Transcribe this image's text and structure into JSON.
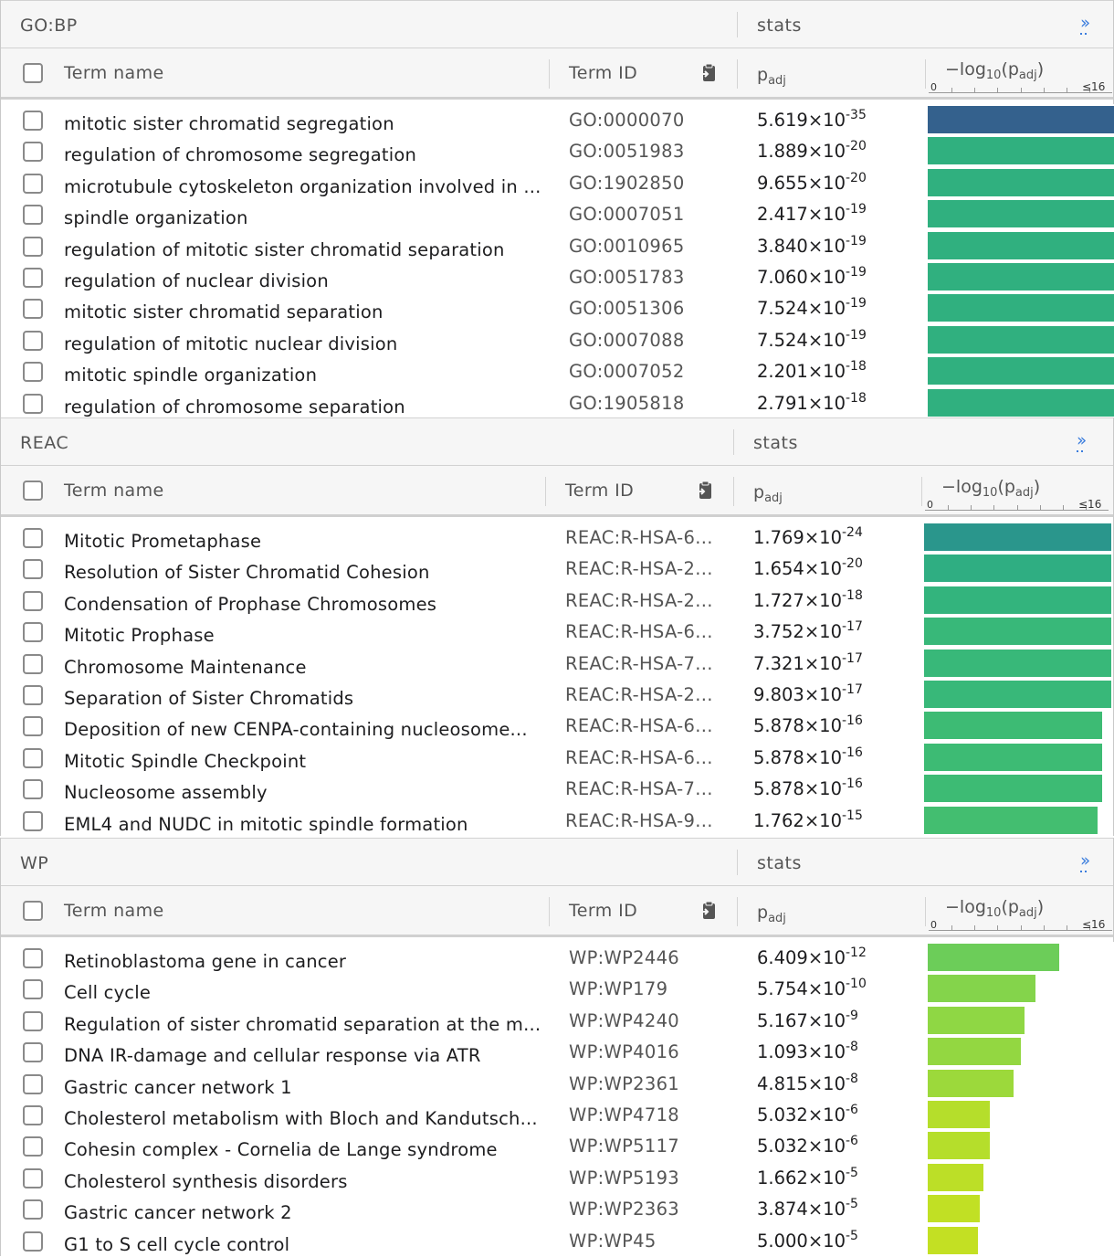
{
  "columns": {
    "term_name": "Term name",
    "term_id": "Term ID",
    "padj": "p",
    "padj_sub": "adj",
    "log_prefix": "−log",
    "log_sub": "10",
    "log_mid": "(p",
    "log_sub2": "adj",
    "log_suffix": ")",
    "stats": "stats",
    "axis_zero": "0",
    "axis_max": "≤16",
    "expand_glyph": "››"
  },
  "sections": [
    {
      "title": "GO:BP",
      "rows": [
        {
          "name": "mitotic sister chromatid segregation",
          "id": "GO:0000070",
          "mant": "5.619×10",
          "exp": "-35",
          "score": 16,
          "color": "#34618d"
        },
        {
          "name": "regulation of chromosome segregation",
          "id": "GO:0051983",
          "mant": "1.889×10",
          "exp": "-20",
          "score": 16,
          "color": "#30b07f"
        },
        {
          "name": "microtubule cytoskeleton organization involved in ...",
          "id": "GO:1902850",
          "mant": "9.655×10",
          "exp": "-20",
          "score": 16,
          "color": "#30b07f"
        },
        {
          "name": "spindle organization",
          "id": "GO:0007051",
          "mant": "2.417×10",
          "exp": "-19",
          "score": 16,
          "color": "#30b07f"
        },
        {
          "name": "regulation of mitotic sister chromatid separation",
          "id": "GO:0010965",
          "mant": "3.840×10",
          "exp": "-19",
          "score": 16,
          "color": "#30b07f"
        },
        {
          "name": "regulation of nuclear division",
          "id": "GO:0051783",
          "mant": "7.060×10",
          "exp": "-19",
          "score": 16,
          "color": "#30b07f"
        },
        {
          "name": "mitotic sister chromatid separation",
          "id": "GO:0051306",
          "mant": "7.524×10",
          "exp": "-19",
          "score": 16,
          "color": "#30b07f"
        },
        {
          "name": "regulation of mitotic nuclear division",
          "id": "GO:0007088",
          "mant": "7.524×10",
          "exp": "-19",
          "score": 16,
          "color": "#30b07f"
        },
        {
          "name": "mitotic spindle organization",
          "id": "GO:0007052",
          "mant": "2.201×10",
          "exp": "-18",
          "score": 16,
          "color": "#30b07f"
        },
        {
          "name": "regulation of chromosome separation",
          "id": "GO:1905818",
          "mant": "2.791×10",
          "exp": "-18",
          "score": 16,
          "color": "#30b07f"
        }
      ]
    },
    {
      "title": "REAC",
      "rows": [
        {
          "name": "Mitotic Prometaphase",
          "id": "REAC:R-HSA-6...",
          "mant": "1.769×10",
          "exp": "-24",
          "score": 16,
          "color": "#2a968c"
        },
        {
          "name": "Resolution of Sister Chromatid Cohesion",
          "id": "REAC:R-HSA-2...",
          "mant": "1.654×10",
          "exp": "-20",
          "score": 16,
          "color": "#2fae82"
        },
        {
          "name": "Condensation of Prophase Chromosomes",
          "id": "REAC:R-HSA-2...",
          "mant": "1.727×10",
          "exp": "-18",
          "score": 16,
          "color": "#33b47d"
        },
        {
          "name": "Mitotic Prophase",
          "id": "REAC:R-HSA-6...",
          "mant": "3.752×10",
          "exp": "-17",
          "score": 16,
          "color": "#38b879"
        },
        {
          "name": "Chromosome Maintenance",
          "id": "REAC:R-HSA-7...",
          "mant": "7.321×10",
          "exp": "-17",
          "score": 16,
          "color": "#38b879"
        },
        {
          "name": "Separation of Sister Chromatids",
          "id": "REAC:R-HSA-2...",
          "mant": "9.803×10",
          "exp": "-17",
          "score": 16,
          "color": "#38b879"
        },
        {
          "name": "Deposition of new CENPA-containing nucleosome...",
          "id": "REAC:R-HSA-6...",
          "mant": "5.878×10",
          "exp": "-16",
          "score": 15.2,
          "color": "#3dbb74"
        },
        {
          "name": "Mitotic Spindle Checkpoint",
          "id": "REAC:R-HSA-6...",
          "mant": "5.878×10",
          "exp": "-16",
          "score": 15.2,
          "color": "#3dbb74"
        },
        {
          "name": "Nucleosome assembly",
          "id": "REAC:R-HSA-7...",
          "mant": "5.878×10",
          "exp": "-16",
          "score": 15.2,
          "color": "#3dbb74"
        },
        {
          "name": "EML4 and NUDC in mitotic spindle formation",
          "id": "REAC:R-HSA-9...",
          "mant": "1.762×10",
          "exp": "-15",
          "score": 14.8,
          "color": "#43be70"
        }
      ]
    },
    {
      "title": "WP",
      "rows": [
        {
          "name": "Retinoblastoma gene in cancer",
          "id": "WP:WP2446",
          "mant": "6.409×10",
          "exp": "-12",
          "score": 11.2,
          "color": "#6ccd59"
        },
        {
          "name": "Cell cycle",
          "id": "WP:WP179",
          "mant": "5.754×10",
          "exp": "-10",
          "score": 9.2,
          "color": "#84d44b"
        },
        {
          "name": "Regulation of sister chromatid separation at the m...",
          "id": "WP:WP4240",
          "mant": "5.167×10",
          "exp": "-9",
          "score": 8.3,
          "color": "#8fd744"
        },
        {
          "name": "DNA IR-damage and cellular response via ATR",
          "id": "WP:WP4016",
          "mant": "1.093×10",
          "exp": "-8",
          "score": 7.96,
          "color": "#93d741"
        },
        {
          "name": "Gastric cancer network 1",
          "id": "WP:WP2361",
          "mant": "4.815×10",
          "exp": "-8",
          "score": 7.3,
          "color": "#9cd93b"
        },
        {
          "name": "Cholesterol metabolism with Bloch and Kandutsch...",
          "id": "WP:WP4718",
          "mant": "5.032×10",
          "exp": "-6",
          "score": 5.3,
          "color": "#b5de2b"
        },
        {
          "name": "Cohesin complex - Cornelia de Lange syndrome",
          "id": "WP:WP5117",
          "mant": "5.032×10",
          "exp": "-6",
          "score": 5.3,
          "color": "#b5de2b"
        },
        {
          "name": "Cholesterol synthesis disorders",
          "id": "WP:WP5193",
          "mant": "1.662×10",
          "exp": "-5",
          "score": 4.78,
          "color": "#bcdf27"
        },
        {
          "name": "Gastric cancer network 2",
          "id": "WP:WP2363",
          "mant": "3.874×10",
          "exp": "-5",
          "score": 4.41,
          "color": "#c1e024"
        },
        {
          "name": "G1 to S cell cycle control",
          "id": "WP:WP45",
          "mant": "5.000×10",
          "exp": "-5",
          "score": 4.3,
          "color": "#c3e023"
        }
      ]
    }
  ]
}
